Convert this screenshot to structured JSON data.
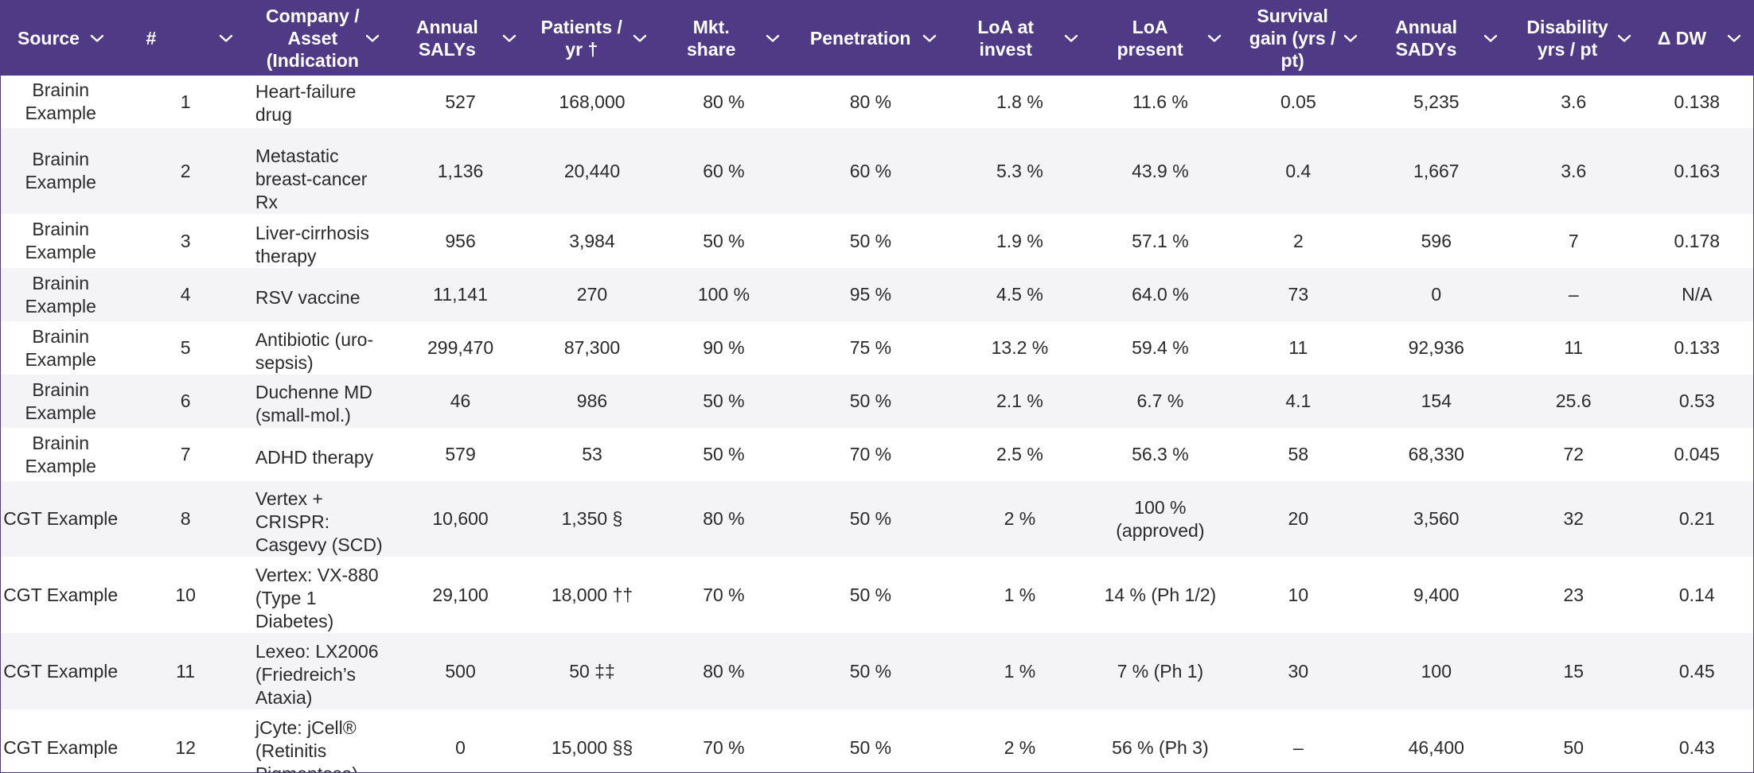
{
  "colors": {
    "header_bg": "#4f3a85",
    "header_text": "#ffffff",
    "row_alt": "#f4f4f7"
  },
  "header": {
    "columns": [
      {
        "key": "source",
        "label": "Source"
      },
      {
        "key": "num",
        "label": "#"
      },
      {
        "key": "asset",
        "label": "Company / Asset (Indication"
      },
      {
        "key": "salys",
        "label": "Annual SALYs"
      },
      {
        "key": "patients",
        "label": "Patients / yr †"
      },
      {
        "key": "share",
        "label": "Mkt. share"
      },
      {
        "key": "penetration",
        "label": "Penetration"
      },
      {
        "key": "loa_invest",
        "label": "LoA at invest"
      },
      {
        "key": "loa_present",
        "label": "LoA present"
      },
      {
        "key": "survival",
        "label": "Survival gain (yrs / pt)"
      },
      {
        "key": "sadys",
        "label": "Annual SADYs"
      },
      {
        "key": "disability",
        "label": "Disability yrs / pt"
      },
      {
        "key": "dw",
        "label": "Δ DW"
      }
    ]
  },
  "rows": [
    {
      "source": "Brainin Example",
      "num": "1",
      "asset": "Heart-failure drug",
      "salys": "527",
      "patients": "168,000",
      "share": "80 %",
      "penetration": "80 %",
      "loa_invest": "1.8 %",
      "loa_present": "11.6 %",
      "survival": "0.05",
      "sadys": "5,235",
      "disability": "3.6",
      "dw": "0.138"
    },
    {
      "source": "Brainin Example",
      "num": "2",
      "asset": "Metastatic breast-cancer Rx",
      "salys": "1,136",
      "patients": "20,440",
      "share": "60 %",
      "penetration": "60 %",
      "loa_invest": "5.3 %",
      "loa_present": "43.9 %",
      "survival": "0.4",
      "sadys": "1,667",
      "disability": "3.6",
      "dw": "0.163"
    },
    {
      "source": "Brainin Example",
      "num": "3",
      "asset": "Liver-cirrhosis therapy",
      "salys": "956",
      "patients": "3,984",
      "share": "50 %",
      "penetration": "50 %",
      "loa_invest": "1.9 %",
      "loa_present": "57.1 %",
      "survival": "2",
      "sadys": "596",
      "disability": "7",
      "dw": "0.178"
    },
    {
      "source": "Brainin Example",
      "num": "4",
      "asset": "RSV vaccine",
      "salys": "11,141",
      "patients": "270",
      "share": "100 %",
      "penetration": "95 %",
      "loa_invest": "4.5 %",
      "loa_present": "64.0 %",
      "survival": "73",
      "sadys": "0",
      "disability": "–",
      "dw": "N/A"
    },
    {
      "source": "Brainin Example",
      "num": "5",
      "asset": "Antibiotic (uro-sepsis)",
      "salys": "299,470",
      "patients": "87,300",
      "share": "90 %",
      "penetration": "75 %",
      "loa_invest": "13.2 %",
      "loa_present": "59.4 %",
      "survival": "11",
      "sadys": "92,936",
      "disability": "11",
      "dw": "0.133"
    },
    {
      "source": "Brainin Example",
      "num": "6",
      "asset": "Duchenne MD (small-mol.)",
      "salys": "46",
      "patients": "986",
      "share": "50 %",
      "penetration": "50 %",
      "loa_invest": "2.1 %",
      "loa_present": "6.7 %",
      "survival": "4.1",
      "sadys": "154",
      "disability": "25.6",
      "dw": "0.53"
    },
    {
      "source": "Brainin Example",
      "num": "7",
      "asset": "ADHD therapy",
      "salys": "579",
      "patients": "53",
      "share": "50 %",
      "penetration": "70 %",
      "loa_invest": "2.5 %",
      "loa_present": "56.3 %",
      "survival": "58",
      "sadys": "68,330",
      "disability": "72",
      "dw": "0.045"
    },
    {
      "source": "CGT Example",
      "num": "8",
      "asset": "Vertex + CRISPR: Casgevy (SCD)",
      "salys": "10,600",
      "patients": "1,350 §",
      "share": "80 %",
      "penetration": "50 %",
      "loa_invest": "2 %",
      "loa_present": "100 % (approved)",
      "survival": "20",
      "sadys": "3,560",
      "disability": "32",
      "dw": "0.21"
    },
    {
      "source": "CGT Example",
      "num": "10",
      "asset": "Vertex: VX-880 (Type 1 Diabetes)",
      "salys": "29,100",
      "patients": "18,000 ††",
      "share": "70 %",
      "penetration": "50 %",
      "loa_invest": "1 %",
      "loa_present": "14 % (Ph 1/2)",
      "survival": "10",
      "sadys": "9,400",
      "disability": "23",
      "dw": "0.14"
    },
    {
      "source": "CGT Example",
      "num": "11",
      "asset": "Lexeo: LX2006 (Friedreich’s Ataxia)",
      "salys": "500",
      "patients": "50 ‡‡",
      "share": "80 %",
      "penetration": "50 %",
      "loa_invest": "1 %",
      "loa_present": "7 % (Ph 1)",
      "survival": "30",
      "sadys": "100",
      "disability": "15",
      "dw": "0.45"
    },
    {
      "source": "CGT Example",
      "num": "12",
      "asset": "jCyte: jCell® (Retinitis Pigmentosa)",
      "salys": "0",
      "patients": "15,000 §§",
      "share": "70 %",
      "penetration": "50 %",
      "loa_invest": "2 %",
      "loa_present": "56 % (Ph 3)",
      "survival": "–",
      "sadys": "46,400",
      "disability": "50",
      "dw": "0.43"
    }
  ]
}
